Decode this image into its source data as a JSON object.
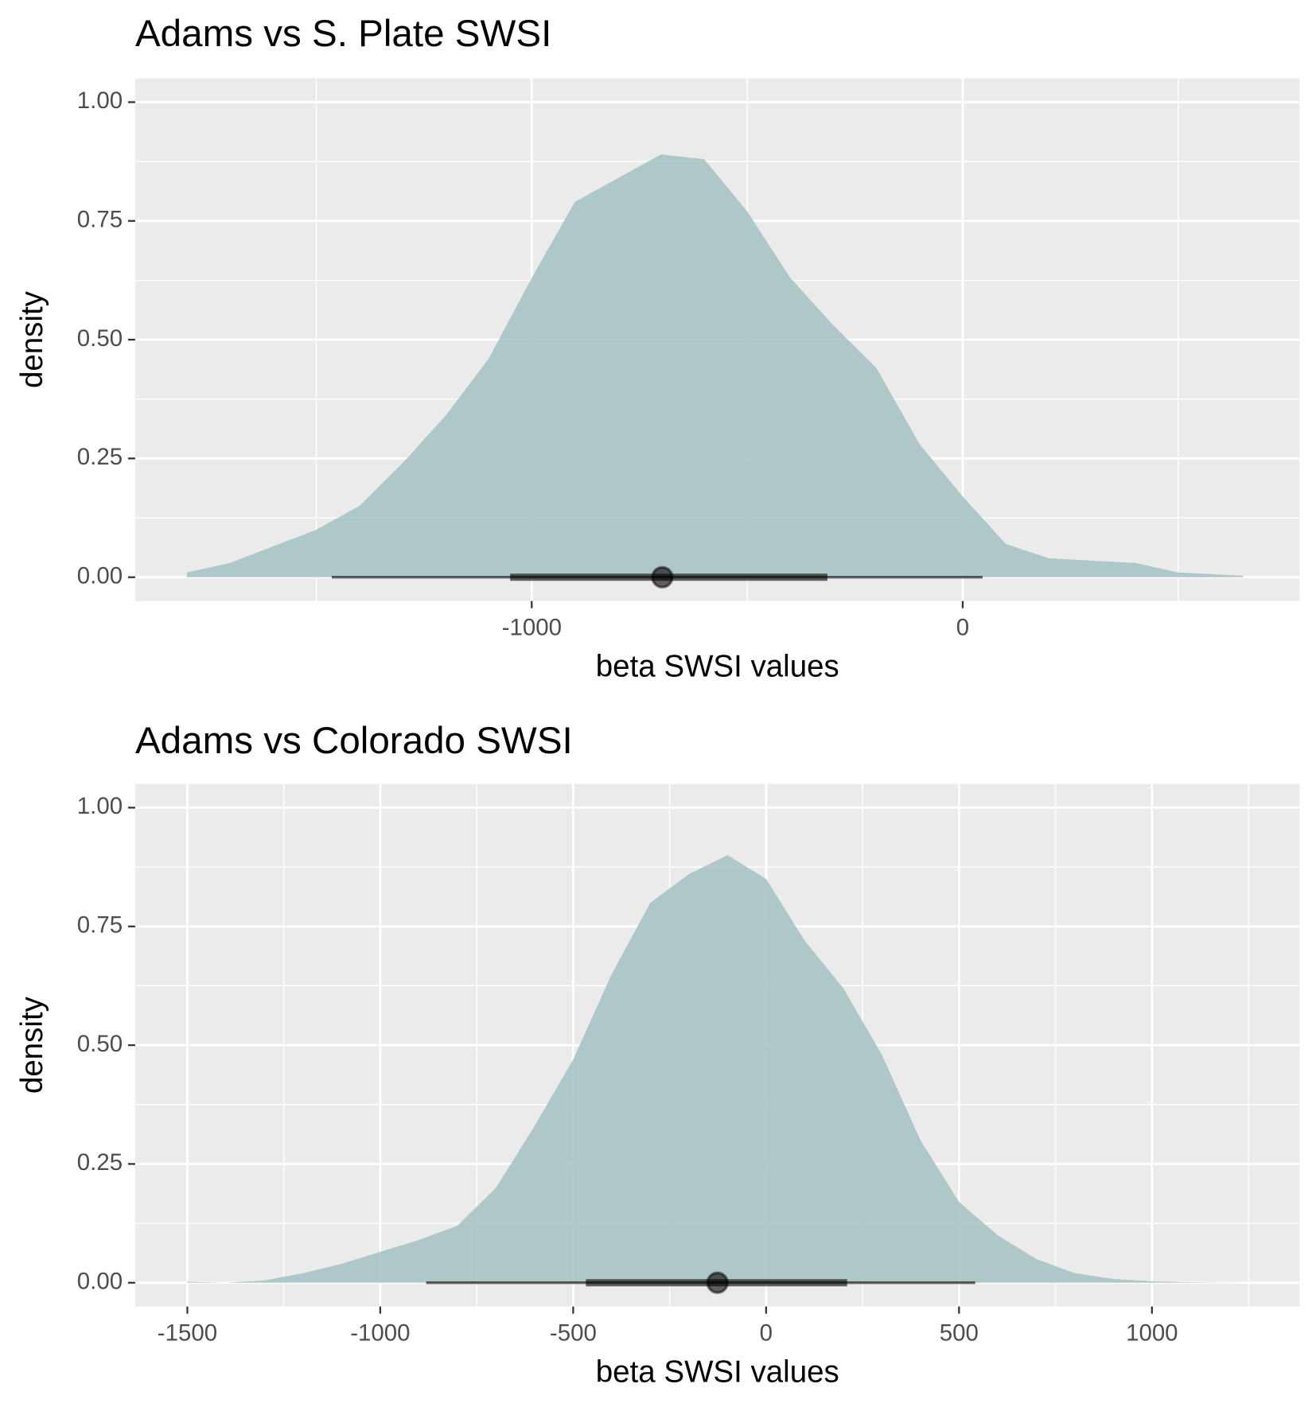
{
  "chart_data": [
    {
      "type": "halfeye",
      "title": "Adams vs S. Plate SWSI",
      "x_label": "beta SWSI values",
      "y_label": "density",
      "x": [
        -1800,
        -1700,
        -1600,
        -1500,
        -1400,
        -1300,
        -1200,
        -1100,
        -1000,
        -900,
        -800,
        -700,
        -600,
        -500,
        -400,
        -300,
        -200,
        -100,
        0,
        100,
        200,
        300,
        400,
        500,
        650
      ],
      "values": [
        0.01,
        0.03,
        0.065,
        0.1,
        0.15,
        0.24,
        0.34,
        0.46,
        0.63,
        0.79,
        0.84,
        0.89,
        0.88,
        0.77,
        0.63,
        0.53,
        0.44,
        0.28,
        0.17,
        0.07,
        0.04,
        0.035,
        0.03,
        0.01,
        0.003
      ],
      "color": "#a7c4c5",
      "interval_color": "#000000",
      "median": -697,
      "interval_66": [
        -1050,
        -314
      ],
      "interval_95": [
        -1464,
        46
      ],
      "xlim": [
        -1920,
        782
      ],
      "ylim": [
        -0.05,
        1.05
      ],
      "xticks": [
        -1000,
        0
      ],
      "xminor": [
        -1500,
        -500,
        500
      ],
      "yticks": [
        {
          "value": 0,
          "label": "0.00"
        },
        {
          "value": 0.25,
          "label": "0.25"
        },
        {
          "value": 0.5,
          "label": "0.50"
        },
        {
          "value": 0.75,
          "label": "0.75"
        },
        {
          "value": 1,
          "label": "1.00"
        }
      ],
      "yminor": [
        0.125,
        0.375,
        0.625,
        0.875
      ],
      "grid": true
    },
    {
      "type": "halfeye",
      "title": "Adams vs Colorado SWSI",
      "x_label": "beta SWSI values",
      "y_label": "density",
      "x": [
        -1500,
        -1400,
        -1300,
        -1200,
        -1100,
        -1000,
        -900,
        -800,
        -700,
        -600,
        -500,
        -400,
        -300,
        -200,
        -100,
        0,
        100,
        200,
        300,
        400,
        500,
        600,
        700,
        800,
        900,
        1000,
        1100,
        1250
      ],
      "values": [
        0.002,
        0.0,
        0.005,
        0.02,
        0.04,
        0.065,
        0.09,
        0.12,
        0.2,
        0.33,
        0.47,
        0.65,
        0.8,
        0.86,
        0.9,
        0.85,
        0.72,
        0.62,
        0.48,
        0.3,
        0.17,
        0.1,
        0.05,
        0.02,
        0.008,
        0.003,
        0.001,
        0.0
      ],
      "color": "#a7c4c5",
      "interval_color": "#000000",
      "median": -126,
      "interval_66": [
        -467,
        210
      ],
      "interval_95": [
        -881,
        542
      ],
      "xlim": [
        -1635,
        1383
      ],
      "ylim": [
        -0.05,
        1.05
      ],
      "xticks": [
        -1500,
        -1000,
        -500,
        0,
        500,
        1000
      ],
      "xminor": [
        -1250,
        -750,
        -250,
        250,
        750,
        1250
      ],
      "yticks": [
        {
          "value": 0,
          "label": "0.00"
        },
        {
          "value": 0.25,
          "label": "0.25"
        },
        {
          "value": 0.5,
          "label": "0.50"
        },
        {
          "value": 0.75,
          "label": "0.75"
        },
        {
          "value": 1,
          "label": "1.00"
        }
      ],
      "yminor": [
        0.125,
        0.375,
        0.625,
        0.875
      ],
      "grid": true
    }
  ]
}
